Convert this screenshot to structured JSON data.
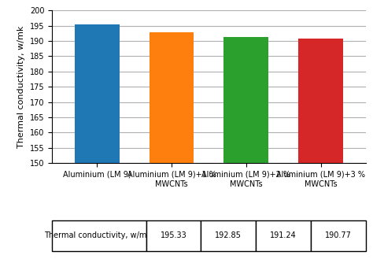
{
  "chart_data": {
    "type": "bar",
    "categories": [
      "Aluminium (LM 9)",
      "Aluminium (LM 9)+1 %\nMWCNTs",
      "Aluminium (LM 9)+2 %\nMWCNTs",
      "Aluminium (LM 9)+3 %\nMWCNTs"
    ],
    "series": [
      {
        "name": "Thermal conductivity, w/m k",
        "values": [
          195.33,
          192.85,
          191.24,
          190.77
        ]
      }
    ],
    "ylabel": "Thermal conductivity, w/mk",
    "ylim": [
      150,
      200
    ],
    "yticks": [
      150,
      155,
      160,
      165,
      170,
      175,
      180,
      185,
      190,
      195,
      200
    ],
    "grid": true,
    "data_labels": true
  }
}
